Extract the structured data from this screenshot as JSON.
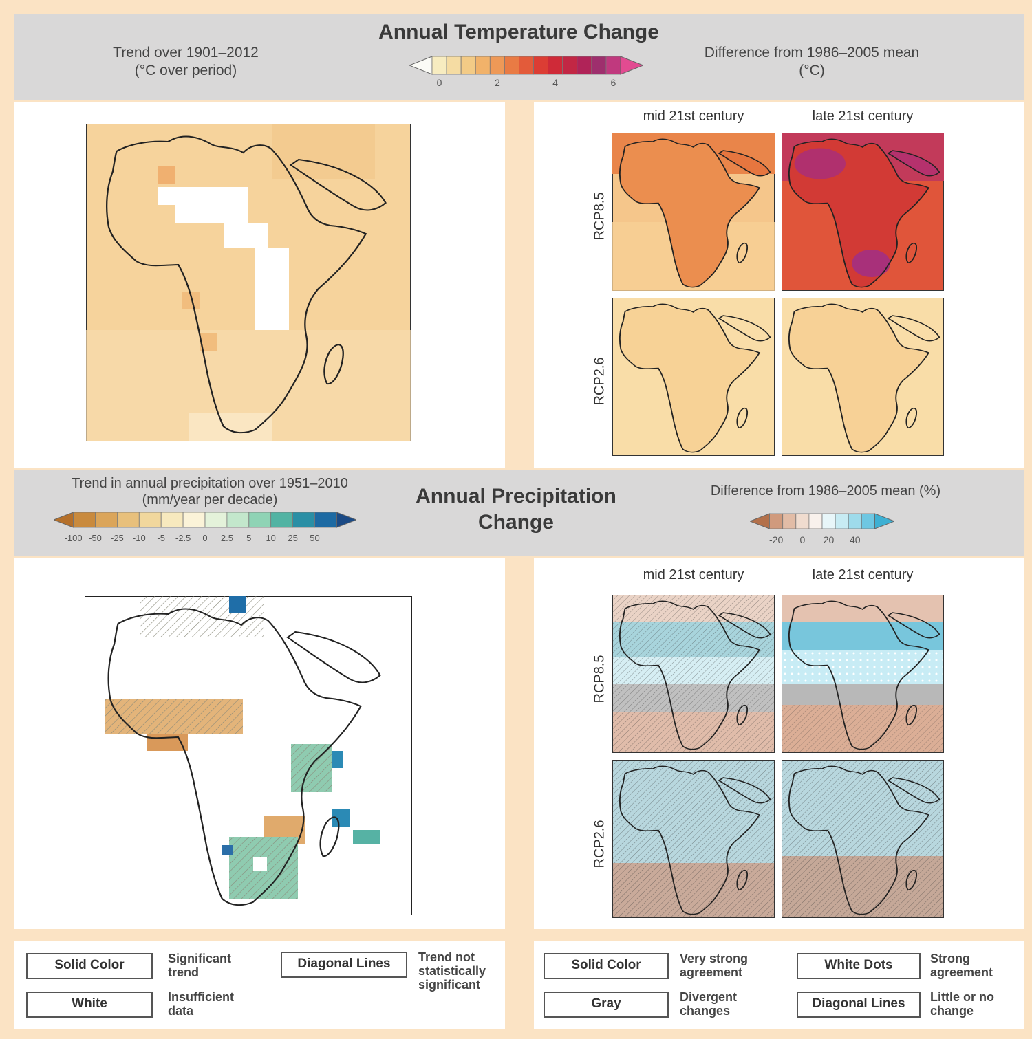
{
  "temperature": {
    "title": "Annual Temperature Change",
    "left_header": {
      "line1": "Trend over 1901–2012",
      "line2": "(°C over period)"
    },
    "right_header": {
      "line1": "Difference from 1986–2005 mean",
      "line2": "(°C)"
    },
    "colorbar_ticks": [
      "0",
      "2",
      "4",
      "6"
    ],
    "colorbar_colors": [
      "#fbfbf6",
      "#f7ecc0",
      "#f5dca3",
      "#f3cb86",
      "#f1b26a",
      "#ee9957",
      "#e97b44",
      "#e35b3a",
      "#dc3d34",
      "#cf2a38",
      "#c22744",
      "#b02358",
      "#9e2f6d",
      "#c0397e",
      "#e24b91"
    ]
  },
  "precipitation": {
    "title_line1": "Annual Precipitation",
    "title_line2": "Change",
    "left_header": {
      "line1": "Trend in annual precipitation over 1951–2010",
      "line2": "(mm/year per decade)"
    },
    "right_header": "Difference from 1986–2005 mean (%)",
    "left_colorbar_ticks": [
      "-100",
      "-50",
      "-25",
      "-10",
      "-5",
      "-2.5",
      "0",
      "2.5",
      "5",
      "10",
      "25",
      "50"
    ],
    "right_colorbar_ticks": [
      "-20",
      "0",
      "20",
      "40"
    ],
    "left_colorbar_colors": [
      "#b5702a",
      "#c98a3d",
      "#dba55a",
      "#e8c07c",
      "#f1d79d",
      "#f7e9be",
      "#fbf3d8",
      "#e4f2da",
      "#c3e7cc",
      "#8fd3b5",
      "#52b3a3",
      "#2a8fa5",
      "#1d6aa3",
      "#1b4a85"
    ],
    "right_colorbar_colors": [
      "#b3704a",
      "#d09a7d",
      "#e2bca6",
      "#f0dccf",
      "#f9f1ec",
      "#e8f6f9",
      "#c7ebf3",
      "#9edbeb",
      "#6ec7e2",
      "#3eb0d3"
    ]
  },
  "column_headers": {
    "mid": "mid 21st century",
    "late": "late 21st century"
  },
  "row_labels": {
    "high": "RCP8.5",
    "low": "RCP2.6"
  },
  "key_left": [
    {
      "label": "Solid Color",
      "desc": "Significant trend"
    },
    {
      "label": "White",
      "desc": "Insufficient data"
    },
    {
      "label": "Diagonal Lines",
      "desc": "Trend not statistically significant"
    }
  ],
  "key_right": [
    {
      "label": "Solid Color",
      "desc": "Very strong agreement"
    },
    {
      "label": "Gray",
      "desc": "Divergent changes"
    },
    {
      "label": "White Dots",
      "desc": "Strong agreement"
    },
    {
      "label": "Diagonal Lines",
      "desc": "Little or no change"
    }
  ],
  "colors": {
    "background": "#fbe3c4",
    "band": "#d9d8d8",
    "map_trend_fill": "#f6d199",
    "rcp85_mid": "#ec8f4f",
    "rcp85_late": "#d8403a",
    "rcp85_late_hot": "#b0306e",
    "rcp26_fill": "#f8d79e",
    "precip_wet": "#a8d4dc",
    "precip_dry": "#c9a898",
    "precip_gray": "#b8b8b8"
  }
}
